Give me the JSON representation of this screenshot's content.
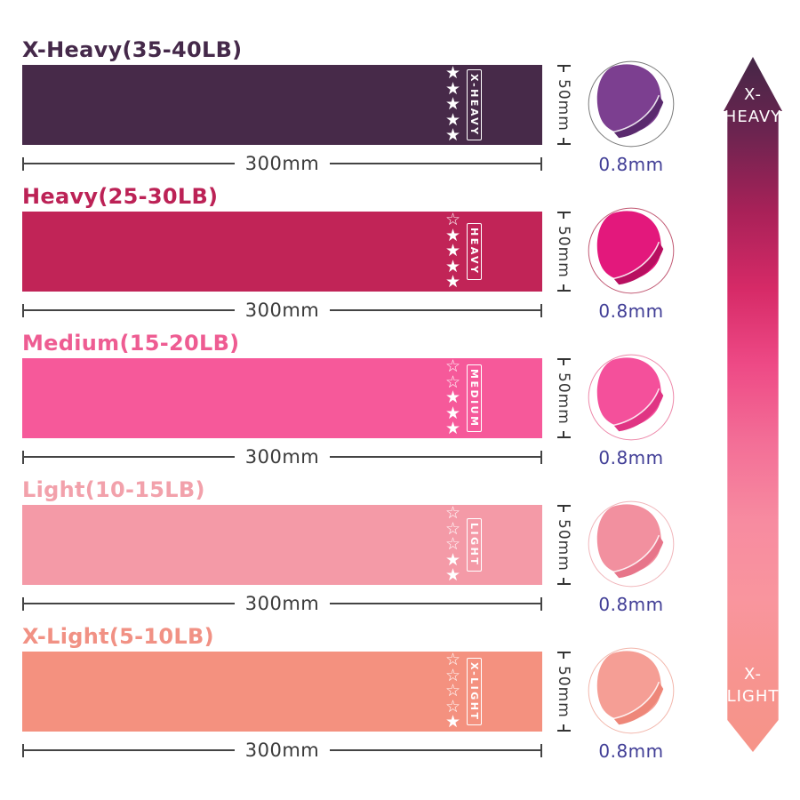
{
  "page": {
    "background": "#ffffff"
  },
  "measurements": {
    "width_label": "300mm",
    "height_label": "50mm",
    "thickness_label": "0.8mm"
  },
  "icons": {
    "star_filled": "★",
    "star_outline": "☆"
  },
  "bands": [
    {
      "title": "X-Heavy(35-40LB)",
      "tag": "X-HEAVY",
      "stars_filled": 5,
      "stars_total": 5,
      "band_color": "#472A49",
      "title_color": "#45294A",
      "photo_main_color": "#7C3F90",
      "photo_shade_color": "#5A2A6E",
      "photo_ring_color": "#777777"
    },
    {
      "title": "Heavy(25-30LB)",
      "tag": "HEAVY",
      "stars_filled": 4,
      "stars_total": 5,
      "band_color": "#C12457",
      "title_color": "#BC2256",
      "photo_main_color": "#E3187C",
      "photo_shade_color": "#B80F60",
      "photo_ring_color": "#C05570"
    },
    {
      "title": "Medium(15-20LB)",
      "tag": "MEDIUM",
      "stars_filled": 3,
      "stars_total": 5,
      "band_color": "#F6599A",
      "title_color": "#EE5C92",
      "photo_main_color": "#F4509B",
      "photo_shade_color": "#E03483",
      "photo_ring_color": "#ED86A8"
    },
    {
      "title": "Light(10-15LB)",
      "tag": "LIGHT",
      "stars_filled": 2,
      "stars_total": 5,
      "band_color": "#F49AA7",
      "title_color": "#F2A1AB",
      "photo_main_color": "#F2909F",
      "photo_shade_color": "#E7758A",
      "photo_ring_color": "#F0B4B9"
    },
    {
      "title": "X-Light(5-10LB)",
      "tag": "X-LIGHT",
      "stars_filled": 1,
      "stars_total": 5,
      "band_color": "#F4917F",
      "title_color": "#F19184",
      "photo_main_color": "#F59E95",
      "photo_shade_color": "#EE8779",
      "photo_ring_color": "#F2B5AA"
    }
  ],
  "strength_scale": {
    "top_label_lines": [
      "X-",
      "HEAVY"
    ],
    "bottom_label_lines": [
      "X-",
      "LIGHT"
    ],
    "gradient_stops": [
      "#452747",
      "#6D2450",
      "#A82158",
      "#D62A67",
      "#EE4A86",
      "#F36F97",
      "#F78BA0",
      "#F9959E",
      "#F79490",
      "#F69488"
    ]
  }
}
